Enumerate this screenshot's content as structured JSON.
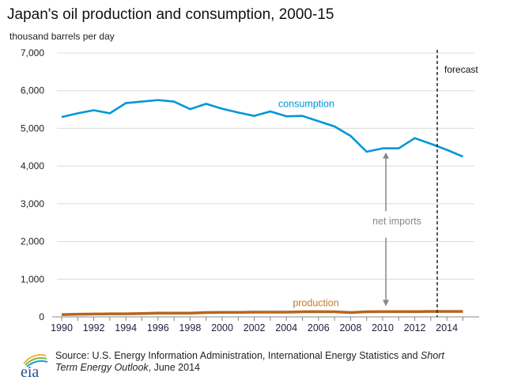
{
  "chart_data": {
    "type": "line",
    "title": "Japan's oil production and consumption, 2000-15",
    "ylabel": "thousand barrels per day",
    "xlabel": "",
    "ylim": [
      0,
      7000
    ],
    "xlim": [
      1990,
      2015
    ],
    "y_ticks": [
      "0",
      "1,000",
      "2,000",
      "3,000",
      "4,000",
      "5,000",
      "6,000",
      "7,000"
    ],
    "y_tick_values": [
      0,
      1000,
      2000,
      3000,
      4000,
      5000,
      6000,
      7000
    ],
    "x_ticks": [
      "1990",
      "1992",
      "1994",
      "1996",
      "1998",
      "2000",
      "2002",
      "2004",
      "2006",
      "2008",
      "2010",
      "2012",
      "2014"
    ],
    "x_tick_values": [
      1990,
      1992,
      1994,
      1996,
      1998,
      2000,
      2002,
      2004,
      2006,
      2008,
      2010,
      2012,
      2014
    ],
    "grid": true,
    "x": [
      1990,
      1991,
      1992,
      1993,
      1994,
      1995,
      1996,
      1997,
      1998,
      1999,
      2000,
      2001,
      2002,
      2003,
      2004,
      2005,
      2006,
      2007,
      2008,
      2009,
      2010,
      2011,
      2012,
      2013,
      2014,
      2015
    ],
    "series": [
      {
        "name": "consumption",
        "color": "#0096d6",
        "values": [
          5300,
          5400,
          5480,
          5400,
          5670,
          5710,
          5750,
          5710,
          5510,
          5650,
          5520,
          5420,
          5330,
          5450,
          5320,
          5330,
          5190,
          5050,
          4800,
          4380,
          4470,
          4470,
          4740,
          4590,
          4430,
          4250
        ]
      },
      {
        "name": "production",
        "color": "#b5651d",
        "values": [
          60,
          70,
          75,
          80,
          80,
          90,
          100,
          100,
          100,
          115,
          120,
          120,
          125,
          125,
          125,
          135,
          140,
          135,
          115,
          135,
          140,
          140,
          140,
          145,
          145,
          145
        ]
      }
    ],
    "annotations": [
      {
        "text": "consumption",
        "near": "consumption line around 2003-2007",
        "color": "#0096d6"
      },
      {
        "text": "production",
        "near": "production line around 2005-2008",
        "color": "#c07a30"
      },
      {
        "text": "net imports",
        "near": "2010, double-headed arrow between production and consumption",
        "color": "#888888"
      },
      {
        "text": "forecast",
        "near": "right of dashed vertical line"
      }
    ],
    "forecast_start_year": 2013.4,
    "legend": "none (inline labels)"
  },
  "header": {
    "title": "Japan's oil production and consumption, 2000-15",
    "unit": "thousand barrels per day"
  },
  "labels": {
    "consumption": "consumption",
    "production": "production",
    "net_imports": "net imports",
    "forecast": "forecast"
  },
  "footer": {
    "logo_text": "eia",
    "source_prefix": "Source: U.S. Energy Information Administration, International Energy Statistics and ",
    "source_italic_1": "Short Term Energy Outlook",
    "source_suffix": ", June 2014"
  }
}
